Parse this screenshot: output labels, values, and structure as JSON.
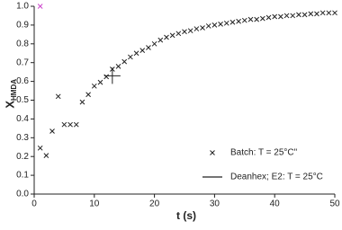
{
  "chart_data": {
    "type": "scatter",
    "xlabel": "t (s)",
    "ylabel": "X",
    "ylabel_sub": "HMDA",
    "xlim": [
      0,
      50
    ],
    "xticks": [
      0,
      10,
      20,
      30,
      40,
      50
    ],
    "ylim": [
      0,
      1
    ],
    "yticks": [
      {
        "value": 0,
        "label": "0.0"
      },
      {
        "value": 0.1,
        "label": "0.1"
      },
      {
        "value": 0.2,
        "label": "0.2"
      },
      {
        "value": 0.3,
        "label": "0.3"
      },
      {
        "value": 0.4,
        "label": "0.4"
      },
      {
        "value": 0.5,
        "label": "0.5"
      },
      {
        "value": 0.6,
        "label": "0.6"
      },
      {
        "value": 0.7,
        "label": "0.7"
      },
      {
        "value": 0.8,
        "label": "0.8"
      },
      {
        "value": 0.9,
        "label": "0.9"
      },
      {
        "value": 1,
        "label": "1.0"
      }
    ],
    "legend": "bottom-right",
    "series": [
      {
        "name": "Batch: T = 25°C\"",
        "color": "#222222",
        "marker": "x",
        "x": [
          1,
          2,
          3,
          4,
          5,
          6,
          7,
          8,
          9,
          10,
          11,
          12,
          13,
          14,
          15,
          16,
          17,
          18,
          19,
          20,
          21,
          22,
          23,
          24,
          25,
          26,
          27,
          28,
          29,
          30,
          31,
          32,
          33,
          34,
          35,
          36,
          37,
          38,
          39,
          40,
          41,
          42,
          43,
          44,
          45,
          46,
          47,
          48,
          49,
          50
        ],
        "values": [
          0.245,
          0.205,
          0.335,
          0.52,
          0.37,
          0.37,
          0.37,
          0.49,
          0.53,
          0.575,
          0.595,
          0.625,
          0.665,
          0.68,
          0.705,
          0.73,
          0.75,
          0.765,
          0.78,
          0.8,
          0.82,
          0.835,
          0.845,
          0.855,
          0.865,
          0.87,
          0.88,
          0.885,
          0.895,
          0.9,
          0.905,
          0.91,
          0.915,
          0.92,
          0.925,
          0.93,
          0.93,
          0.935,
          0.94,
          0.945,
          0.945,
          0.95,
          0.95,
          0.955,
          0.955,
          0.96,
          0.96,
          0.965,
          0.965,
          0.965
        ]
      },
      {
        "name": "Deanhex; E2: T = 25°C",
        "color": "#222222",
        "marker": "plus",
        "x": [
          13
        ],
        "values": [
          0.63
        ]
      },
      {
        "color": "#cc44cc",
        "marker": "x",
        "x": [
          1
        ],
        "values": [
          1
        ]
      }
    ]
  }
}
